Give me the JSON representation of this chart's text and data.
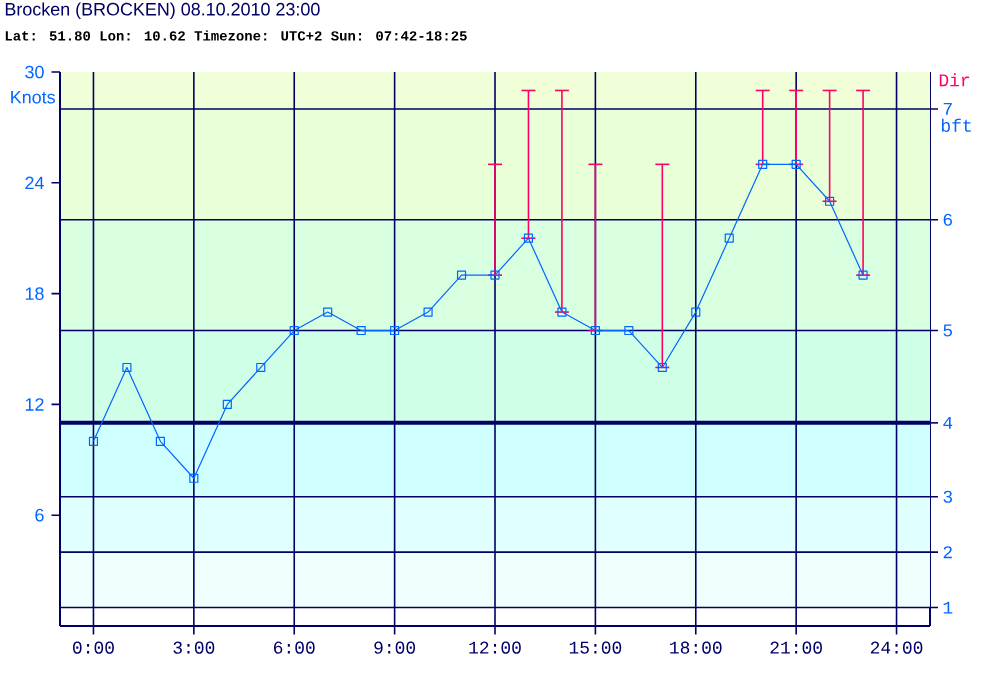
{
  "chart_data": {
    "type": "line",
    "title": "Brocken (BROCKEN) 08.10.2010 23:00",
    "subtitle": "Lat: 51.80 Lon: 10.62 Timezone: UTC+2 Sun: 07:42-18:25",
    "ylabel": "Knots",
    "y2label": "bft",
    "annotations": [
      "Dir"
    ],
    "x": [
      0,
      1,
      2,
      3,
      4,
      5,
      6,
      7,
      8,
      9,
      10,
      11,
      12,
      13,
      14,
      15,
      16,
      17,
      18,
      19,
      20,
      21,
      22,
      23
    ],
    "series": [
      {
        "color": "#0066ff",
        "values": [
          10,
          14,
          10,
          8,
          12,
          14,
          16,
          17,
          16,
          16,
          17,
          19,
          19,
          21,
          17,
          16,
          16,
          14,
          17,
          21,
          25,
          25,
          23,
          19
        ],
        "errors": [
          null,
          null,
          null,
          null,
          null,
          null,
          null,
          null,
          null,
          null,
          null,
          null,
          [
            19,
            25
          ],
          [
            21,
            29
          ],
          [
            17,
            29
          ],
          [
            16,
            25
          ],
          null,
          [
            14,
            25
          ],
          null,
          null,
          [
            25,
            29
          ],
          [
            25,
            29
          ],
          [
            23,
            29
          ],
          [
            19,
            29
          ]
        ]
      }
    ],
    "xlim": [
      -1,
      25
    ],
    "xticks": [
      {
        "value": 0,
        "label": "0:00"
      },
      {
        "value": 3,
        "label": "3:00"
      },
      {
        "value": 6,
        "label": "6:00"
      },
      {
        "value": 9,
        "label": "9:00"
      },
      {
        "value": 12,
        "label": "12:00"
      },
      {
        "value": 15,
        "label": "15:00"
      },
      {
        "value": 18,
        "label": "18:00"
      },
      {
        "value": 21,
        "label": "21:00"
      },
      {
        "value": 24,
        "label": "24:00"
      }
    ],
    "ylim": [
      0,
      30
    ],
    "yticks": [
      6,
      12,
      18,
      24,
      30
    ],
    "bands": [
      {
        "axis": "y",
        "from": 1,
        "to": 4,
        "label": "1",
        "color": "#eefffe"
      },
      {
        "axis": "y",
        "from": 4,
        "to": 7,
        "label": "2",
        "color": "#e0ffff"
      },
      {
        "axis": "y",
        "from": 7,
        "to": 11,
        "label": "3",
        "color": "#d0ffff"
      },
      {
        "axis": "y",
        "from": 11,
        "to": 16,
        "label": "4",
        "color": "#d0ffe8"
      },
      {
        "axis": "y",
        "from": 16,
        "to": 22,
        "label": "5",
        "color": "#d8ffe0"
      },
      {
        "axis": "y",
        "from": 22,
        "to": 28,
        "label": "6",
        "color": "#e8ffd8"
      },
      {
        "axis": "y",
        "from": 28,
        "to": 30,
        "label": "7",
        "color": "#f0ffd8"
      }
    ],
    "ref_lines": [
      {
        "axis": "y",
        "value": 11,
        "color": "#000066"
      }
    ],
    "grid": "x",
    "marker": "square",
    "line_style": "solid"
  }
}
